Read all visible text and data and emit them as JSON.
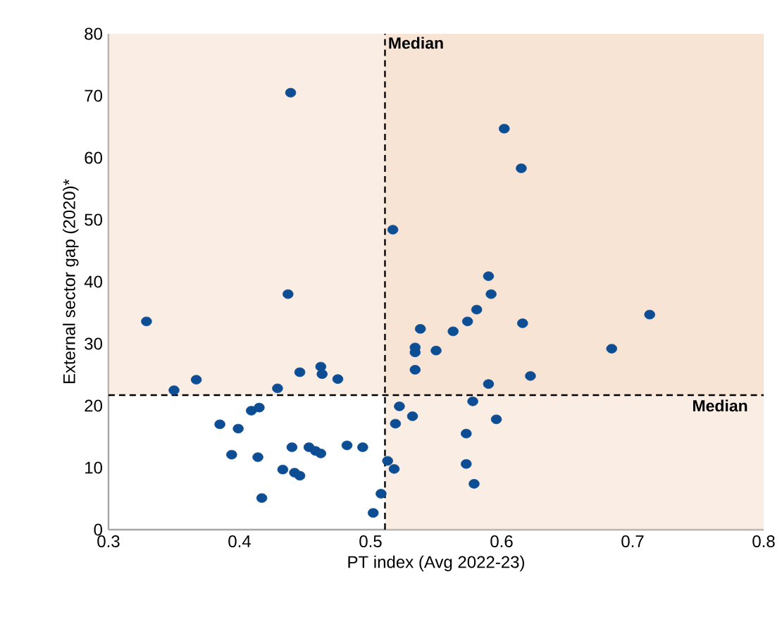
{
  "chart_data": {
    "type": "scatter",
    "xlabel": "PT index (Avg 2022-23)",
    "ylabel": "External sector gap (2020)*",
    "xlim": [
      0.3,
      0.8
    ],
    "xticks": [
      0.3,
      0.4,
      0.5,
      0.6,
      0.7,
      0.8
    ],
    "ylim": [
      0,
      80
    ],
    "yticks": [
      0,
      10,
      20,
      30,
      40,
      50,
      60,
      70,
      80
    ],
    "grid": false,
    "marker": "circle",
    "series": [
      {
        "color": "#0d4d94",
        "x": [
          0.439,
          0.517,
          0.437,
          0.602,
          0.615,
          0.59,
          0.592,
          0.581,
          0.574,
          0.563,
          0.538,
          0.616,
          0.713,
          0.534,
          0.534,
          0.55,
          0.684,
          0.534,
          0.622,
          0.59,
          0.578,
          0.522,
          0.532,
          0.519,
          0.596,
          0.573,
          0.573,
          0.579,
          0.513,
          0.518,
          0.508,
          0.502,
          0.329,
          0.35,
          0.367,
          0.429,
          0.446,
          0.462,
          0.463,
          0.475,
          0.409,
          0.415,
          0.385,
          0.399,
          0.394,
          0.414,
          0.44,
          0.453,
          0.458,
          0.462,
          0.482,
          0.494,
          0.433,
          0.442,
          0.446,
          0.417
        ],
        "values": [
          70.5,
          48.4,
          38.0,
          64.7,
          58.3,
          40.9,
          38.0,
          35.5,
          33.6,
          32.0,
          32.4,
          33.3,
          34.7,
          29.4,
          28.6,
          28.9,
          29.2,
          25.8,
          24.8,
          23.5,
          20.7,
          19.9,
          18.3,
          17.1,
          17.8,
          15.5,
          10.6,
          7.4,
          11.1,
          9.8,
          5.8,
          2.7,
          33.6,
          22.5,
          24.2,
          22.8,
          25.4,
          26.3,
          25.1,
          24.3,
          19.2,
          19.7,
          17.0,
          16.3,
          12.1,
          11.7,
          13.3,
          13.3,
          12.7,
          12.3,
          13.6,
          13.3,
          9.7,
          9.2,
          8.7,
          5.1
        ]
      }
    ],
    "ref_lines": [
      {
        "axis": "x",
        "value": 0.511,
        "label": "Median",
        "color": "#000000",
        "line_style": "dashed"
      },
      {
        "axis": "y",
        "value": 21.7,
        "label": "Median",
        "color": "#000000",
        "line_style": "dashed"
      }
    ],
    "bands": [
      {
        "axis": "y",
        "from": 21.7,
        "to": 80,
        "color": "#f5dcc8"
      },
      {
        "axis": "x",
        "from": 0.511,
        "to": 0.8,
        "color": "#f5dcc8"
      }
    ]
  }
}
